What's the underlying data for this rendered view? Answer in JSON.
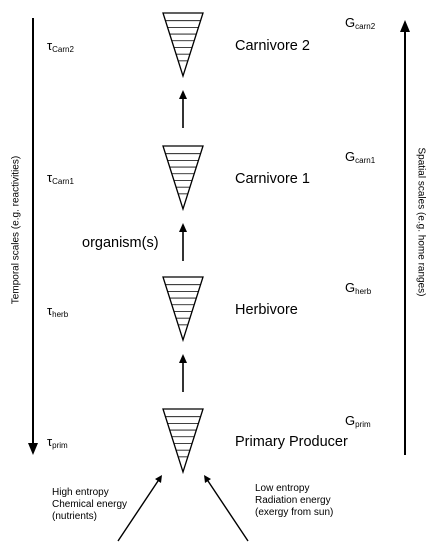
{
  "levels": [
    {
      "name": "Carnivore 2",
      "tau_base": "τ",
      "tau_sub": "Carn2",
      "g_base": "G",
      "g_sub": "carn2"
    },
    {
      "name": "Carnivore 1",
      "tau_base": "τ",
      "tau_sub": "Carn1",
      "g_base": "G",
      "g_sub": "carn1"
    },
    {
      "name": "Herbivore",
      "tau_base": "τ",
      "tau_sub": "herb",
      "g_base": "G",
      "g_sub": "herb"
    },
    {
      "name": "Primary Producer",
      "tau_base": "τ",
      "tau_sub": "prim",
      "g_base": "G",
      "g_sub": "prim"
    }
  ],
  "organism_label": "organism(s)",
  "axes": {
    "temporal": "Temporal scales (e.g. reactivities)",
    "spatial": "Spatial scales (e.g. home ranges)"
  },
  "inputs": {
    "left": [
      "High entropy",
      "Chemical energy",
      "(nutrients)"
    ],
    "right": [
      "Low entropy",
      "Radiation energy",
      "(exergy from sun)"
    ]
  }
}
